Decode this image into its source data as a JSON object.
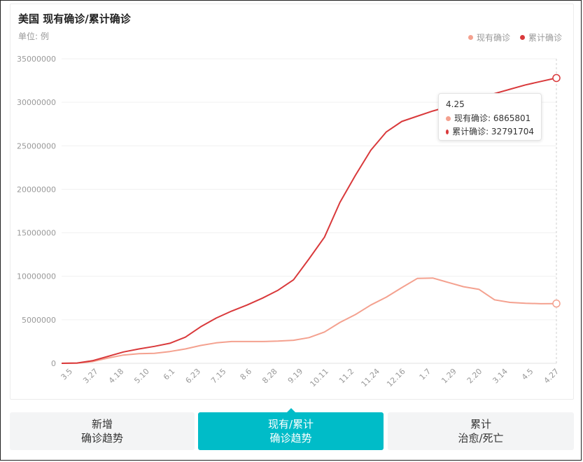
{
  "header": {
    "title": "美国 现有确诊/累计确诊",
    "unit": "单位: 例"
  },
  "legend": [
    {
      "label": "现有确诊",
      "color": "#f4a18f"
    },
    {
      "label": "累计确诊",
      "color": "#d9393b"
    }
  ],
  "tooltip": {
    "date": "4.25",
    "rows": [
      {
        "label": "现有确诊: 6865801",
        "color": "#f4a18f"
      },
      {
        "label": "累计确诊: 32791704",
        "color": "#d9393b"
      }
    ]
  },
  "tabs": [
    {
      "line1": "新增",
      "line2": "确诊趋势",
      "active": false
    },
    {
      "line1": "现有/累计",
      "line2": "确诊趋势",
      "active": true
    },
    {
      "line1": "累计",
      "line2": "治愈/死亡",
      "active": false
    }
  ],
  "chart_data": {
    "type": "line",
    "title": "美国 现有确诊/累计确诊",
    "ylabel": "单位: 例",
    "ylim": [
      0,
      35000000
    ],
    "yticks": [
      "0",
      "5000000",
      "10000000",
      "15000000",
      "20000000",
      "25000000",
      "30000000",
      "35000000"
    ],
    "xticks": [
      "3.5",
      "3.27",
      "4.18",
      "5.10",
      "6.1",
      "6.23",
      "7.15",
      "8.6",
      "8.28",
      "9.19",
      "10.11",
      "11.2",
      "11.24",
      "12.16",
      "1.7",
      "1.29",
      "2.20",
      "3.14",
      "4.5",
      "4.27"
    ],
    "legend_position": "top-right",
    "grid": true,
    "series": [
      {
        "name": "现有确诊",
        "color": "#f4a18f",
        "values": [
          0,
          20000,
          200000,
          600000,
          950000,
          1100000,
          1150000,
          1350000,
          1650000,
          2050000,
          2350000,
          2500000,
          2500000,
          2500000,
          2550000,
          2650000,
          2950000,
          3600000,
          4700000,
          5600000,
          6700000,
          7600000,
          8700000,
          9750000,
          9800000,
          9300000,
          8800000,
          8500000,
          7300000,
          7000000,
          6900000,
          6850000,
          6865801
        ]
      },
      {
        "name": "累计确诊",
        "color": "#d9393b",
        "values": [
          0,
          30000,
          300000,
          800000,
          1300000,
          1650000,
          1950000,
          2300000,
          3000000,
          4200000,
          5200000,
          6000000,
          6700000,
          7500000,
          8400000,
          9600000,
          12000000,
          14500000,
          18500000,
          21600000,
          24500000,
          26600000,
          27800000,
          28400000,
          29000000,
          29500000,
          30100000,
          30600000,
          31000000,
          31500000,
          32000000,
          32400000,
          32791704
        ]
      }
    ]
  }
}
